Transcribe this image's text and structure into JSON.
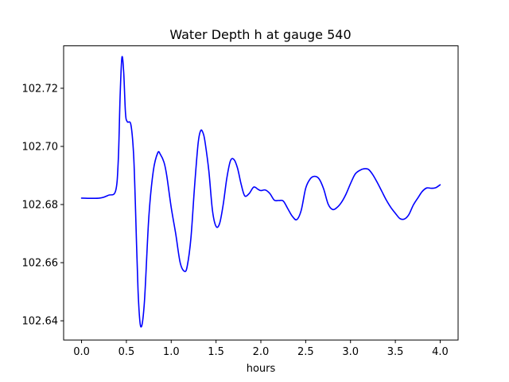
{
  "chart_data": {
    "type": "line",
    "title": "Water Depth h at gauge 540",
    "xlabel": "hours",
    "ylabel": "",
    "xlim": [
      -0.2,
      4.2
    ],
    "ylim": [
      102.6334,
      102.7346
    ],
    "grid": false,
    "legend": "none",
    "xticks": [
      0.0,
      0.5,
      1.0,
      1.5,
      2.0,
      2.5,
      3.0,
      3.5,
      4.0
    ],
    "xtick_labels": [
      "0.0",
      "0.5",
      "1.0",
      "1.5",
      "2.0",
      "2.5",
      "3.0",
      "3.5",
      "4.0"
    ],
    "yticks": [
      102.64,
      102.66,
      102.68,
      102.7,
      102.72
    ],
    "ytick_labels": [
      "102.64",
      "102.66",
      "102.68",
      "102.70",
      "102.72"
    ],
    "series": [
      {
        "color": "#0000ff",
        "x": [
          0.0,
          0.2,
          0.3,
          0.38,
          0.41,
          0.43,
          0.45,
          0.47,
          0.49,
          0.51,
          0.55,
          0.58,
          0.6,
          0.63,
          0.66,
          0.7,
          0.75,
          0.8,
          0.85,
          0.88,
          0.92,
          0.95,
          1.0,
          1.05,
          1.1,
          1.15,
          1.18,
          1.22,
          1.26,
          1.3,
          1.33,
          1.36,
          1.38,
          1.42,
          1.46,
          1.5,
          1.54,
          1.58,
          1.62,
          1.66,
          1.7,
          1.74,
          1.78,
          1.82,
          1.87,
          1.92,
          1.97,
          2.0,
          2.05,
          2.1,
          2.15,
          2.2,
          2.25,
          2.3,
          2.35,
          2.4,
          2.45,
          2.5,
          2.55,
          2.6,
          2.65,
          2.7,
          2.75,
          2.8,
          2.85,
          2.9,
          2.95,
          3.0,
          3.05,
          3.1,
          3.15,
          3.2,
          3.25,
          3.3,
          3.35,
          3.4,
          3.45,
          3.5,
          3.55,
          3.6,
          3.65,
          3.7,
          3.75,
          3.8,
          3.85,
          3.9,
          3.95,
          4.0
        ],
        "y": [
          102.6822,
          102.6822,
          102.6832,
          102.6847,
          102.6955,
          102.7172,
          102.7306,
          102.7255,
          102.7115,
          102.7085,
          102.7075,
          102.6975,
          102.6805,
          102.6505,
          102.638,
          102.646,
          102.6755,
          102.6915,
          102.6978,
          102.6972,
          102.6945,
          102.69,
          102.679,
          102.67,
          102.66,
          102.657,
          102.659,
          102.6685,
          102.686,
          102.701,
          102.7055,
          102.7042,
          102.701,
          102.6915,
          102.678,
          102.6725,
          102.6735,
          102.68,
          102.689,
          102.695,
          102.6955,
          102.6925,
          102.687,
          102.683,
          102.6838,
          102.686,
          102.6852,
          102.6848,
          102.685,
          102.6838,
          102.6815,
          102.6814,
          102.6812,
          102.6786,
          102.676,
          102.6748,
          102.678,
          102.6856,
          102.6888,
          102.6897,
          102.6888,
          102.6854,
          102.6802,
          102.6783,
          102.679,
          102.6808,
          102.6836,
          102.6872,
          102.6904,
          102.6917,
          102.6923,
          102.6921,
          102.6902,
          102.6875,
          102.6845,
          102.6815,
          102.679,
          102.677,
          102.6752,
          102.675,
          102.6765,
          102.6798,
          102.6822,
          102.6845,
          102.6857,
          102.6856,
          102.6858,
          102.6868
        ]
      }
    ]
  }
}
